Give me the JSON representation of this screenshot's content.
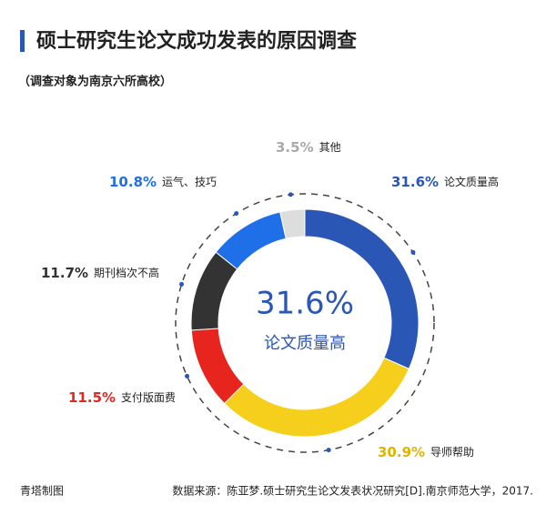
{
  "title": "硕士研究生论文成功发表的原因调查",
  "subtitle": "（调查对象为南京六所高校）",
  "chart_data": {
    "type": "pie",
    "categories": [
      "论文质量高",
      "导师帮助",
      "支付版面费",
      "期刊档次不高",
      "运气、技巧",
      "其他"
    ],
    "values": [
      31.6,
      30.9,
      11.5,
      11.7,
      10.8,
      3.5
    ],
    "value_labels": [
      "31.6%",
      "30.9%",
      "11.5%",
      "11.7%",
      "10.8%",
      "3.5%"
    ],
    "colors": [
      "#2a56b5",
      "#f5cf1b",
      "#e8241f",
      "#333333",
      "#1e6fe8",
      "#dddddd"
    ],
    "label_colors": [
      "#2a56b5",
      "#e0b400",
      "#e8241f",
      "#333333",
      "#1e6fe8",
      "#aaaaaa"
    ]
  },
  "footer": {
    "credit": "青塔制图",
    "source": "数据来源：陈亚梦.硕士研究生论文发表状况研究[D].南京师范大学，2017."
  }
}
